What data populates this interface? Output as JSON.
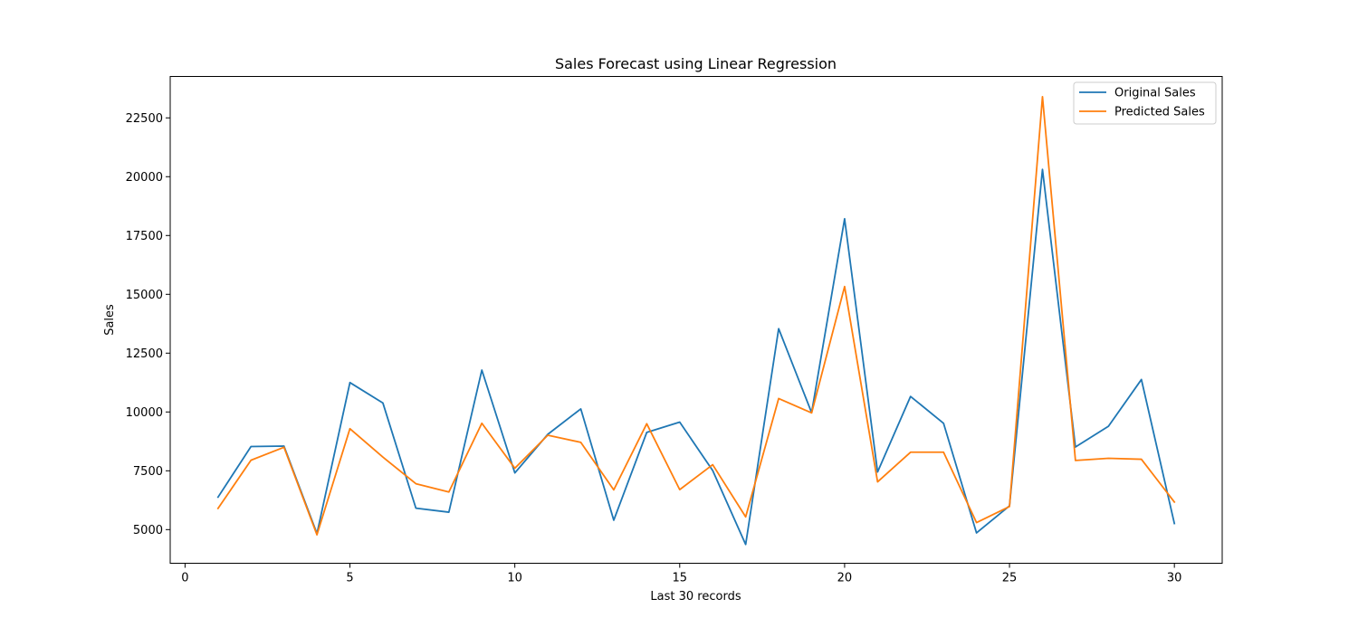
{
  "chart_data": {
    "type": "line",
    "title": "Sales Forecast using Linear Regression",
    "xlabel": "Last 30 records",
    "ylabel": "Sales",
    "xlim": [
      -0.45,
      31.45
    ],
    "ylim": [
      3570,
      24260
    ],
    "xticks": [
      0,
      5,
      10,
      15,
      20,
      25,
      30
    ],
    "xtick_labels": [
      "0",
      "5",
      "10",
      "15",
      "20",
      "25",
      "30"
    ],
    "yticks": [
      5000,
      7500,
      10000,
      12500,
      15000,
      17500,
      20000,
      22500
    ],
    "ytick_labels": [
      "5000",
      "7500",
      "10000",
      "12500",
      "15000",
      "17500",
      "20000",
      "22500"
    ],
    "grid": false,
    "legend_position": "top-right",
    "x": [
      1,
      2,
      3,
      4,
      5,
      6,
      7,
      8,
      9,
      10,
      11,
      12,
      13,
      14,
      15,
      16,
      17,
      18,
      19,
      20,
      21,
      22,
      23,
      24,
      25,
      26,
      27,
      28,
      29,
      30
    ],
    "series": [
      {
        "name": "Original Sales",
        "color": "#1f77b4",
        "values": [
          6380,
          8530,
          8550,
          4830,
          11250,
          10380,
          5910,
          5740,
          11780,
          7410,
          9050,
          10130,
          5400,
          9130,
          9570,
          7510,
          4370,
          13540,
          9970,
          18210,
          7450,
          10660,
          9520,
          4860,
          6010,
          20310,
          8510,
          9390,
          11380,
          5260
        ]
      },
      {
        "name": "Predicted Sales",
        "color": "#ff7f0e",
        "values": [
          5900,
          7950,
          8500,
          4780,
          9290,
          8080,
          6950,
          6600,
          9520,
          7610,
          9010,
          8710,
          6690,
          9500,
          6700,
          7760,
          5540,
          10570,
          9960,
          15330,
          7030,
          8290,
          8290,
          5300,
          5980,
          23400,
          7940,
          8030,
          7990,
          6170
        ]
      }
    ]
  }
}
